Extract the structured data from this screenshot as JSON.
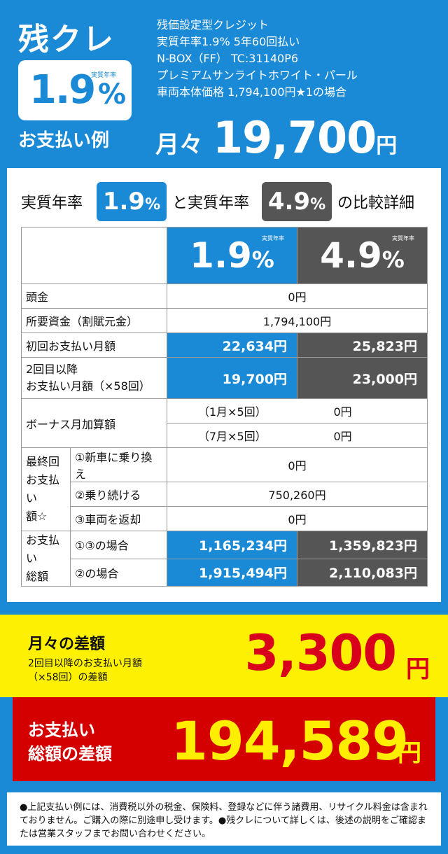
{
  "header": {
    "brand": "残クレ",
    "rate_value": "1.9",
    "rate_caption": "実質年率",
    "rate_pct": "%",
    "example_label": "お支払い例",
    "spec_lines": [
      "残価設定型クレジット",
      "実質年率1.9% 5年60回払い",
      "N-BOX（FF） TC:31140P6",
      "プレミアムサンライトホワイト・パール",
      "車両本体価格 1,794,100円★1の場合"
    ],
    "monthly_label": "月々",
    "monthly_amount": "19,700",
    "monthly_yen": "円"
  },
  "comparison": {
    "title_left": "実質年率",
    "chip_a": "1.9",
    "chip_a_pct": "%",
    "title_mid": "と実質年率",
    "chip_b": "4.9",
    "chip_b_pct": "%",
    "title_right": "の比較詳細",
    "col_a_rate": "1.9",
    "col_b_rate": "4.9",
    "col_caption": "実質年率",
    "pct": "%",
    "rows": {
      "down_payment_label": "頭金",
      "down_payment_value": "0円",
      "required_label": "所要資金（割賦元金）",
      "required_value": "1,794,100円",
      "first_label": "初回お支払い月額",
      "first_a": "22,634円",
      "first_b": "25,823円",
      "second_label_1": "2回目以降",
      "second_label_2": "お支払い月額（×58回）",
      "second_a": "19,700円",
      "second_b": "23,000円",
      "bonus_label": "ボーナス月加算額",
      "bonus_jan_label": "（1月×5回）",
      "bonus_jan_value": "0円",
      "bonus_jul_label": "（7月×5回）",
      "bonus_jul_value": "0円",
      "final_label_1": "最終回",
      "final_label_2": "お支払い",
      "final_label_3": "額☆",
      "final_opt1_label": "①新車に乗り換え",
      "final_opt1_value": "0円",
      "final_opt2_label": "②乗り続ける",
      "final_opt2_value": "750,260円",
      "final_opt3_label": "③車両を返却",
      "final_opt3_value": "0円",
      "total_label_1": "お支払い",
      "total_label_2": "総額",
      "total_opt13_label": "①③の場合",
      "total_opt13_a": "1,165,234円",
      "total_opt13_b": "1,359,823円",
      "total_opt2_label": "②の場合",
      "total_opt2_a": "1,915,494円",
      "total_opt2_b": "2,110,083円"
    }
  },
  "monthly_diff": {
    "title": "月々の差額",
    "sub_1": "2回目以降のお支払い月額",
    "sub_2": "（×58回）の差額",
    "value": "3,300",
    "yen": "円"
  },
  "total_diff": {
    "title_1": "お支払い",
    "title_2": "総額の差額",
    "value": "194,589",
    "yen": "円"
  },
  "footnote": "●上記支払い例には、消費税以外の税金、保険料、登録などに伴う諸費用、リサイクル料金は含まれておりません。ご購入の際に別途申し受けます。●残クレについて詳しくは、後述の説明をご確認または営業スタッフまでお問い合わせください。",
  "colors": {
    "blue": "#1b8ad6",
    "gray": "#555555",
    "yellow": "#fdf000",
    "red": "#d40000"
  }
}
